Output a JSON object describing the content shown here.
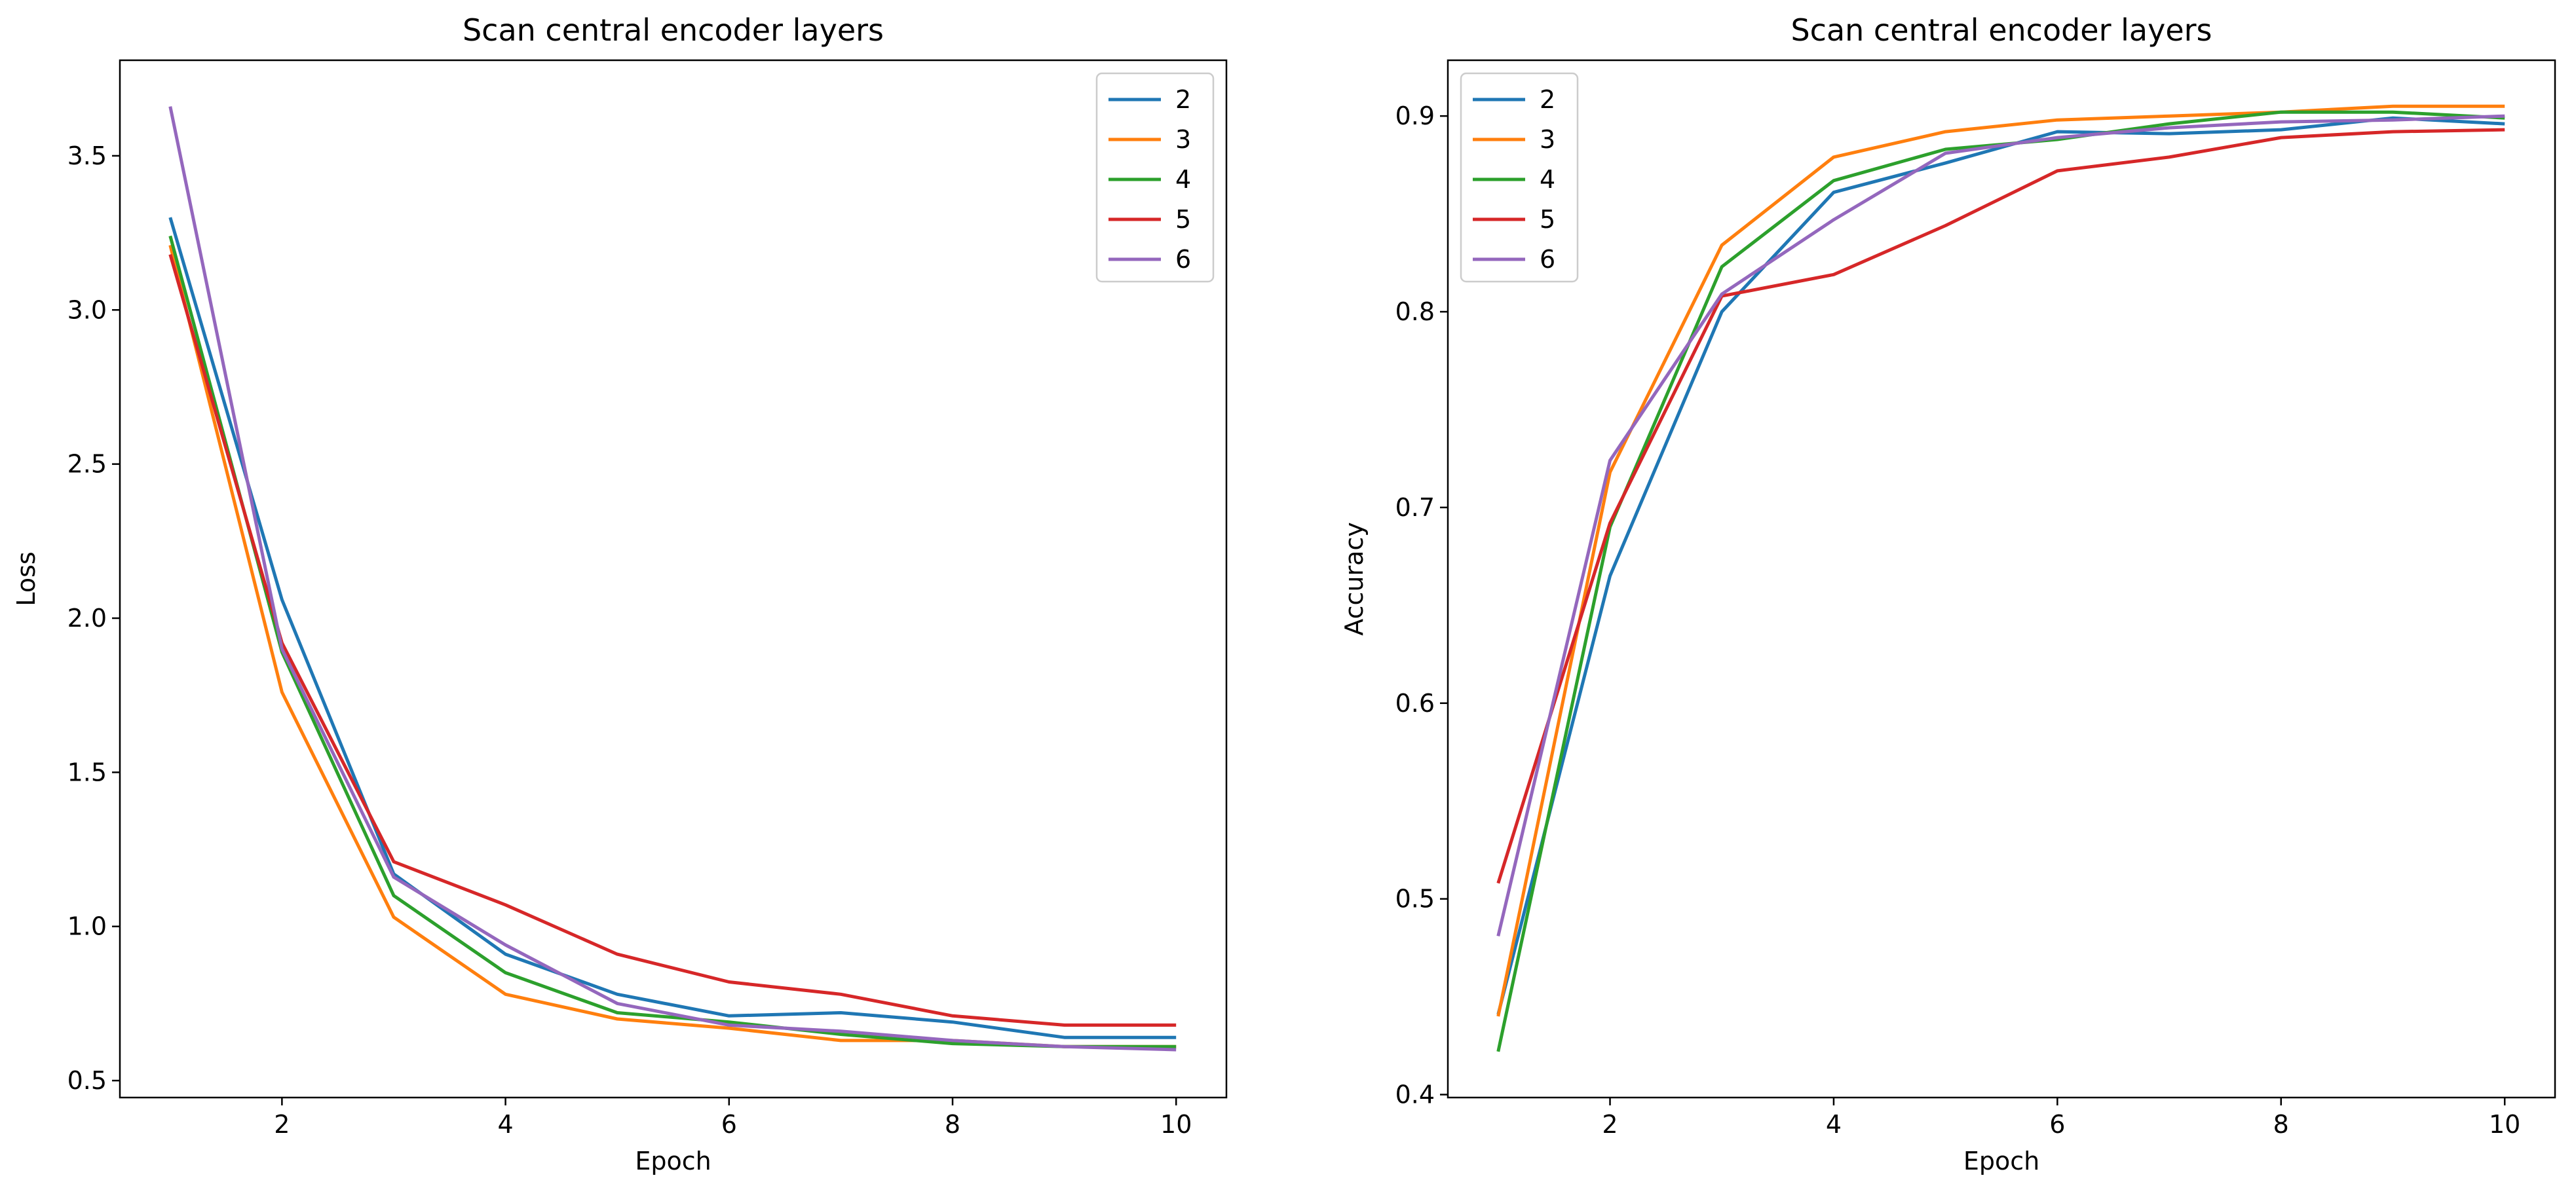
{
  "chart_data": [
    {
      "type": "line",
      "title": "Scan central encoder layers",
      "xlabel": "Epoch",
      "ylabel": "Loss",
      "x": [
        1,
        2,
        3,
        4,
        5,
        6,
        7,
        8,
        9,
        10
      ],
      "xlim": [
        0.55,
        10.45
      ],
      "ylim": [
        0.445,
        3.81
      ],
      "xticks": [
        2,
        4,
        6,
        8,
        10
      ],
      "yticks": [
        0.5,
        1.0,
        1.5,
        2.0,
        2.5,
        3.0,
        3.5
      ],
      "ytick_labels": [
        "0.5",
        "1.0",
        "1.5",
        "2.0",
        "2.5",
        "3.0",
        "3.5"
      ],
      "grid": false,
      "legend_position": "upper right",
      "series": [
        {
          "name": "2",
          "color": "#1f77b4",
          "values": [
            3.3,
            2.06,
            1.17,
            0.91,
            0.78,
            0.71,
            0.72,
            0.69,
            0.64,
            0.64
          ]
        },
        {
          "name": "3",
          "color": "#ff7f0e",
          "values": [
            3.21,
            1.76,
            1.03,
            0.78,
            0.7,
            0.67,
            0.63,
            0.63,
            0.61,
            0.61
          ]
        },
        {
          "name": "4",
          "color": "#2ca02c",
          "values": [
            3.24,
            1.89,
            1.1,
            0.85,
            0.72,
            0.69,
            0.65,
            0.62,
            0.61,
            0.61
          ]
        },
        {
          "name": "5",
          "color": "#d62728",
          "values": [
            3.18,
            1.92,
            1.21,
            1.07,
            0.91,
            0.82,
            0.78,
            0.71,
            0.68,
            0.68
          ]
        },
        {
          "name": "6",
          "color": "#9467bd",
          "values": [
            3.66,
            1.9,
            1.16,
            0.94,
            0.75,
            0.68,
            0.66,
            0.63,
            0.61,
            0.6
          ]
        }
      ]
    },
    {
      "type": "line",
      "title": "Scan central encoder layers",
      "xlabel": "Epoch",
      "ylabel": "Accuracy",
      "x": [
        1,
        2,
        3,
        4,
        5,
        6,
        7,
        8,
        9,
        10
      ],
      "xlim": [
        0.55,
        10.45
      ],
      "ylim": [
        0.3985,
        0.9285
      ],
      "xticks": [
        2,
        4,
        6,
        8,
        10
      ],
      "yticks": [
        0.4,
        0.5,
        0.6,
        0.7,
        0.8,
        0.9
      ],
      "ytick_labels": [
        "0.4",
        "0.5",
        "0.6",
        "0.7",
        "0.8",
        "0.9"
      ],
      "grid": false,
      "legend_position": "upper left",
      "series": [
        {
          "name": "2",
          "color": "#1f77b4",
          "values": [
            0.441,
            0.665,
            0.8,
            0.861,
            0.876,
            0.892,
            0.891,
            0.893,
            0.899,
            0.896
          ]
        },
        {
          "name": "3",
          "color": "#ff7f0e",
          "values": [
            0.44,
            0.718,
            0.834,
            0.879,
            0.892,
            0.898,
            0.9,
            0.902,
            0.905,
            0.905
          ]
        },
        {
          "name": "4",
          "color": "#2ca02c",
          "values": [
            0.422,
            0.69,
            0.823,
            0.867,
            0.883,
            0.888,
            0.896,
            0.902,
            0.902,
            0.899
          ]
        },
        {
          "name": "5",
          "color": "#d62728",
          "values": [
            0.508,
            0.692,
            0.808,
            0.819,
            0.844,
            0.872,
            0.879,
            0.889,
            0.892,
            0.893
          ]
        },
        {
          "name": "6",
          "color": "#9467bd",
          "values": [
            0.481,
            0.724,
            0.809,
            0.847,
            0.881,
            0.889,
            0.894,
            0.897,
            0.898,
            0.9
          ]
        }
      ]
    }
  ]
}
